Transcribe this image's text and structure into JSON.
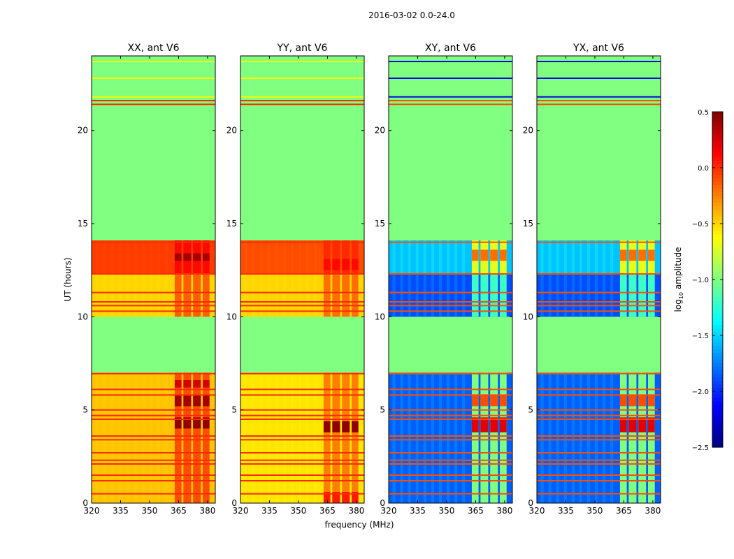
{
  "chart_data": {
    "type": "heatmap",
    "title": "2016-03-02 0.0-24.0",
    "xlabel": "frequency (MHz)",
    "ylabel": "UT (hours)",
    "xlim": [
      320,
      384
    ],
    "ylim": [
      0,
      24
    ],
    "xticks": [
      "320",
      "335",
      "350",
      "365",
      "380"
    ],
    "xtick_values": [
      320,
      335,
      350,
      365,
      380
    ],
    "yticks": [
      "0",
      "5",
      "10",
      "15",
      "20"
    ],
    "ytick_values": [
      0,
      5,
      10,
      15,
      20
    ],
    "colorbar": {
      "label": "log10 amplitude",
      "label_main": "log",
      "label_sub": "10",
      "label_rest": " amplitude",
      "range": [
        -2.5,
        0.5
      ],
      "ticks": [
        "0.5",
        "0.0",
        "−0.5",
        "−1.0",
        "−1.5",
        "−2.0",
        "−2.5"
      ],
      "tick_values": [
        0.5,
        0.0,
        -0.5,
        -1.0,
        -1.5,
        -2.0,
        -2.5
      ],
      "colormap": "jet"
    },
    "flagged_value": -1.0,
    "flagged_intervals": [
      [
        7.0,
        10.0
      ],
      [
        14.1,
        21.5
      ],
      [
        21.95,
        22.7
      ],
      [
        22.9,
        23.6
      ],
      [
        23.75,
        24.0
      ]
    ],
    "rfi_freq_subbands": [
      [
        363,
        366.5
      ],
      [
        367.5,
        371.5
      ],
      [
        372.5,
        376.5
      ],
      [
        377.5,
        381
      ]
    ],
    "rfi_lines_hours": [
      0.5,
      1.2,
      1.5,
      2.1,
      2.3,
      2.7,
      3.4,
      3.6,
      4.5,
      4.7,
      5.0,
      5.8,
      6.1,
      6.95,
      10.3,
      10.6,
      10.8,
      11.3,
      12.3,
      14.0,
      21.4,
      21.6,
      21.8,
      22.8,
      23.7
    ],
    "panels": [
      {
        "title": "XX, ant V6",
        "line_value": 0.0,
        "bands": [
          [
            0,
            7,
            -0.45
          ],
          [
            10,
            12.3,
            -0.5
          ],
          [
            12.3,
            14.1,
            -0.05
          ]
        ],
        "rfi": [
          [
            0,
            7,
            -0.1
          ],
          [
            10,
            12.3,
            -0.15
          ],
          [
            12.3,
            14.1,
            0.1
          ]
        ],
        "hot": [
          [
            4.0,
            4.6,
            0.45
          ],
          [
            5.2,
            5.8,
            0.4
          ],
          [
            6.2,
            6.6,
            0.25
          ],
          [
            13.0,
            13.4,
            0.4
          ]
        ]
      },
      {
        "title": "YY, ant V6",
        "line_value": 0.0,
        "bands": [
          [
            0,
            7,
            -0.55
          ],
          [
            10,
            12.3,
            -0.5
          ],
          [
            12.3,
            14.1,
            -0.1
          ]
        ],
        "rfi": [
          [
            0,
            7,
            -0.25
          ],
          [
            10,
            12.3,
            -0.2
          ],
          [
            12.3,
            14.1,
            0.0
          ]
        ],
        "hot": [
          [
            3.8,
            4.4,
            0.45
          ],
          [
            0,
            0.6,
            0.05
          ],
          [
            12.5,
            13.1,
            0.1
          ]
        ]
      },
      {
        "title": "XY, ant V6",
        "line_value": -0.1,
        "bands": [
          [
            0,
            7,
            -1.85
          ],
          [
            10,
            12.3,
            -1.9
          ],
          [
            12.3,
            14.1,
            -1.55
          ]
        ],
        "rfi": [
          [
            0,
            7,
            -1.0
          ],
          [
            10,
            12.3,
            -1.2
          ],
          [
            12.3,
            14.1,
            -0.7
          ]
        ],
        "hot": [
          [
            3.8,
            4.6,
            0.2
          ],
          [
            5.2,
            5.8,
            -0.1
          ],
          [
            13.0,
            13.6,
            -0.2
          ]
        ]
      },
      {
        "title": "YX, ant V6",
        "line_value": -0.1,
        "bands": [
          [
            0,
            7,
            -1.85
          ],
          [
            10,
            12.3,
            -1.9
          ],
          [
            12.3,
            14.1,
            -1.55
          ]
        ],
        "rfi": [
          [
            0,
            7,
            -1.0
          ],
          [
            10,
            12.3,
            -1.2
          ],
          [
            12.3,
            14.1,
            -0.7
          ]
        ],
        "hot": [
          [
            3.8,
            4.6,
            0.2
          ],
          [
            5.2,
            5.8,
            -0.1
          ],
          [
            13.0,
            13.6,
            -0.2
          ]
        ]
      }
    ]
  }
}
